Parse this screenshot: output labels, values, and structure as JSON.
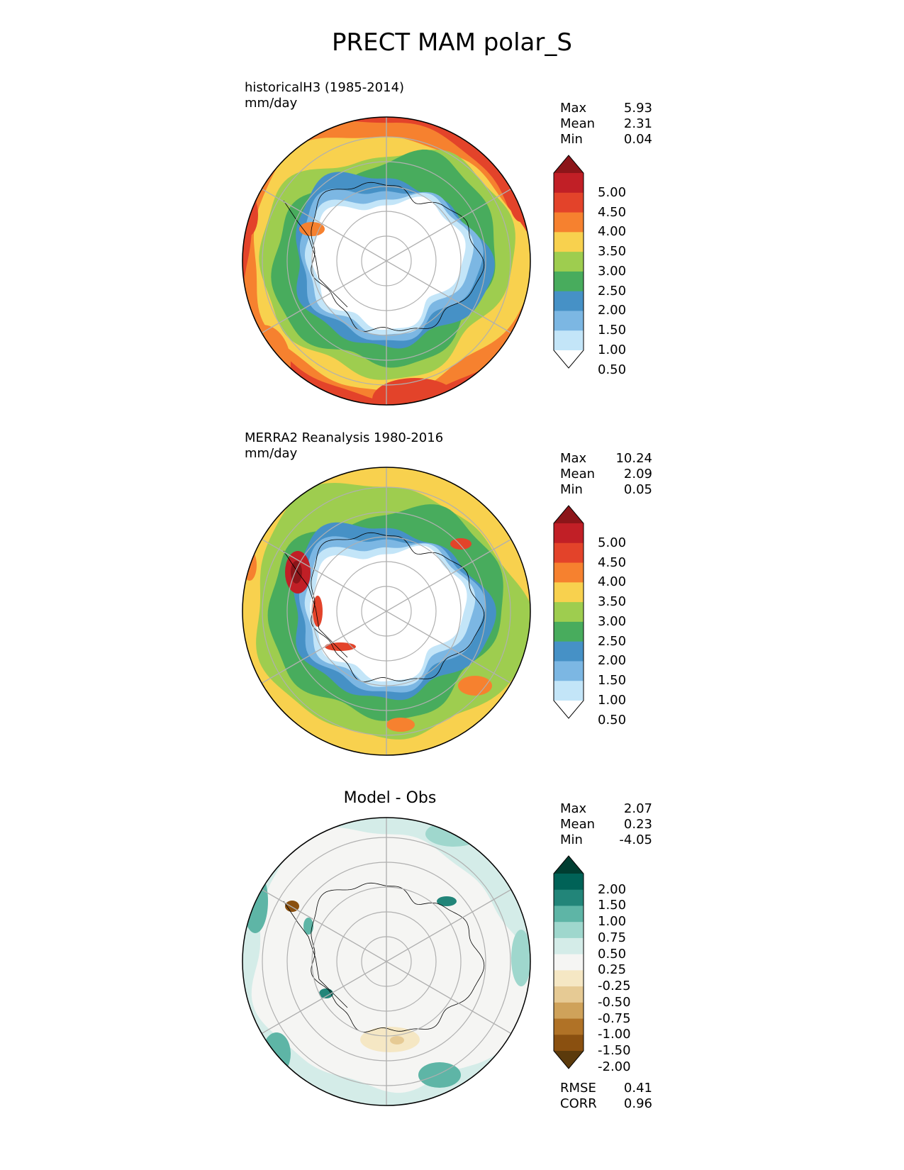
{
  "title": "PRECT MAM polar_S",
  "colors": {
    "precip": [
      "#ffffff",
      "#c3e5f8",
      "#7cb7e3",
      "#4691c6",
      "#48ac5d",
      "#9ecd4f",
      "#f8d14e",
      "#f6812f",
      "#e3432a",
      "#c11f26",
      "#8c1519"
    ],
    "diff": [
      "#5b3a0c",
      "#8a5010",
      "#b07226",
      "#cfa25a",
      "#e6ca94",
      "#f5e7c4",
      "#f5f5f3",
      "#d4ece8",
      "#9fd7cd",
      "#5eb5a6",
      "#228579",
      "#006257",
      "#003d31"
    ]
  },
  "chart_data": [
    {
      "type": "heatmap",
      "name": "test",
      "label_line1": "historicalH3 (1985-2014)",
      "label_line2": "mm/day",
      "stats": [
        {
          "label": "Max",
          "value": "5.93"
        },
        {
          "label": "Mean",
          "value": "2.31"
        },
        {
          "label": "Min",
          "value": "0.04"
        }
      ],
      "colorbar_ticks": [
        "5.00",
        "4.50",
        "4.00",
        "3.50",
        "3.00",
        "2.50",
        "2.00",
        "1.50",
        "1.00",
        "0.50"
      ],
      "max": 5.93,
      "mean": 2.31,
      "min": 0.04
    },
    {
      "type": "heatmap",
      "name": "reference",
      "label_line1": "MERRA2 Reanalysis 1980-2016",
      "label_line2": "mm/day",
      "stats": [
        {
          "label": "Max",
          "value": "10.24"
        },
        {
          "label": "Mean",
          "value": "2.09"
        },
        {
          "label": "Min",
          "value": "0.05"
        }
      ],
      "colorbar_ticks": [
        "5.00",
        "4.50",
        "4.00",
        "3.50",
        "3.00",
        "2.50",
        "2.00",
        "1.50",
        "1.00",
        "0.50"
      ],
      "max": 10.24,
      "mean": 2.09,
      "min": 0.05
    },
    {
      "type": "heatmap",
      "name": "difference",
      "title": "Model - Obs",
      "stats": [
        {
          "label": "Max",
          "value": "2.07"
        },
        {
          "label": "Mean",
          "value": "0.23"
        },
        {
          "label": "Min",
          "value": "-4.05"
        }
      ],
      "colorbar_ticks": [
        "2.00",
        "1.50",
        "1.00",
        "0.75",
        "0.50",
        "0.25",
        "-0.25",
        "-0.50",
        "-0.75",
        "-1.00",
        "-1.50",
        "-2.00"
      ],
      "metrics": [
        {
          "label": "RMSE",
          "value": "0.41"
        },
        {
          "label": "CORR",
          "value": "0.96"
        }
      ],
      "max": 2.07,
      "mean": 0.23,
      "min": -4.05
    }
  ]
}
